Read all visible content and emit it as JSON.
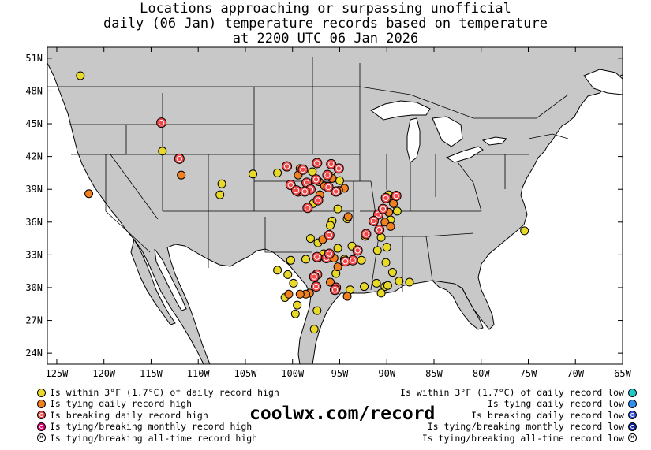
{
  "title_lines": [
    "Locations approaching or surpassing unofficial",
    "daily (06 Jan) temperature records based on temperature",
    "at 2200 UTC 06 Jan 2026"
  ],
  "lat_labels": [
    "51N",
    "48N",
    "45N",
    "42N",
    "39N",
    "36N",
    "33N",
    "30N",
    "27N",
    "24N"
  ],
  "lat_values": [
    51,
    48,
    45,
    42,
    39,
    36,
    33,
    30,
    27,
    24
  ],
  "lon_labels": [
    "125W",
    "120W",
    "115W",
    "110W",
    "105W",
    "100W",
    "95W",
    "90W",
    "85W",
    "80W",
    "75W",
    "70W",
    "65W"
  ],
  "lon_values": [
    -125,
    -120,
    -115,
    -110,
    -105,
    -100,
    -95,
    -90,
    -85,
    -80,
    -75,
    -70,
    -65
  ],
  "colors": {
    "land": "#c8c8c8",
    "water": "#ffffff",
    "within_high": "#e8d828",
    "tying_high": "#f08020",
    "breaking_high": "#f04848",
    "monthly_high": "#e00070",
    "within_low": "#20c8c8",
    "tying_low": "#3090f0",
    "breaking_low": "#3050e0",
    "monthly_low": "#1020a0"
  },
  "legend_high": [
    {
      "label": "Is within 3°F (1.7°C) of daily record high",
      "type": "within_high"
    },
    {
      "label": "Is tying daily record high",
      "type": "tying_high"
    },
    {
      "label": "Is breaking daily record high",
      "type": "breaking_high"
    },
    {
      "label": "Is tying/breaking monthly record high",
      "type": "monthly_high"
    },
    {
      "label": "Is tying/breaking all-time record high",
      "type": "alltime"
    }
  ],
  "legend_low": [
    {
      "label": "Is within 3°F (1.7°C) of daily record low",
      "type": "within_low"
    },
    {
      "label": "Is tying daily record low",
      "type": "tying_low"
    },
    {
      "label": "Is breaking daily record low",
      "type": "breaking_low"
    },
    {
      "label": "Is tying/breaking monthly record low",
      "type": "monthly_low"
    },
    {
      "label": "Is tying/breaking all-time record low",
      "type": "alltime"
    }
  ],
  "website": "coolwx.com/record",
  "stations": {
    "within_high": [
      [
        -122.5,
        49.4
      ],
      [
        -113.8,
        42.5
      ],
      [
        -107.5,
        39.5
      ],
      [
        -107.7,
        38.5
      ],
      [
        -104.2,
        40.4
      ],
      [
        -101.6,
        40.5
      ],
      [
        -97.8,
        37.7
      ],
      [
        -95.8,
        36.1
      ],
      [
        -96,
        35.7
      ],
      [
        -97.3,
        34.1
      ],
      [
        -98.1,
        34.5
      ],
      [
        -98.6,
        32.6
      ],
      [
        -96.7,
        33.1
      ],
      [
        -100.2,
        32.5
      ],
      [
        -101.6,
        31.6
      ],
      [
        -100.5,
        31.2
      ],
      [
        -99.9,
        30.4
      ],
      [
        -100.8,
        29.1
      ],
      [
        -99.5,
        28.4
      ],
      [
        -99.7,
        27.6
      ],
      [
        -97.4,
        27.9
      ],
      [
        -97.7,
        26.2
      ],
      [
        -95.2,
        33.6
      ],
      [
        -94.5,
        32.6
      ],
      [
        -93.9,
        29.8
      ],
      [
        -92.4,
        30.1
      ],
      [
        -91.1,
        30.4
      ],
      [
        -90.2,
        30.1
      ],
      [
        -88.7,
        30.6
      ],
      [
        -87.6,
        30.5
      ],
      [
        -89.4,
        31.4
      ],
      [
        -90.1,
        32.3
      ],
      [
        -91,
        33.4
      ],
      [
        -90,
        33.7
      ],
      [
        -90.6,
        34.6
      ],
      [
        -92.3,
        34.7
      ],
      [
        -92.7,
        32.5
      ],
      [
        -89.8,
        38.5
      ],
      [
        -89.4,
        38.1
      ],
      [
        -88.9,
        37.0
      ],
      [
        -89.6,
        36.2
      ],
      [
        -75.4,
        35.2
      ],
      [
        -95,
        39.8
      ],
      [
        -95.9,
        40.2
      ],
      [
        -97.9,
        40.6
      ],
      [
        -95.2,
        37.2
      ],
      [
        -94.2,
        36.3
      ],
      [
        -90.6,
        29.5
      ],
      [
        -89.9,
        30.2
      ],
      [
        -95.4,
        31.3
      ],
      [
        -93.7,
        33.8
      ],
      [
        -97.3,
        32.7
      ]
    ],
    "tying_high": [
      [
        -121.6,
        38.6
      ],
      [
        -111.8,
        40.3
      ],
      [
        -99.2,
        40.9
      ],
      [
        -99.4,
        40.3
      ],
      [
        -97.2,
        39.7
      ],
      [
        -95.8,
        40.0
      ],
      [
        -94.5,
        39.1
      ],
      [
        -95.1,
        38.9
      ],
      [
        -96.6,
        39.3
      ],
      [
        -97.1,
        38.5
      ],
      [
        -94.1,
        36.5
      ],
      [
        -96.8,
        34.4
      ],
      [
        -95.6,
        32.7
      ],
      [
        -96.0,
        30.5
      ],
      [
        -98.2,
        29.5
      ],
      [
        -98.6,
        29.4
      ],
      [
        -99.2,
        29.4
      ],
      [
        -100.4,
        29.4
      ],
      [
        -94.2,
        29.2
      ],
      [
        -95.2,
        31.9
      ],
      [
        -89.3,
        37.7
      ],
      [
        -89.8,
        36.9
      ],
      [
        -90.2,
        36.0
      ],
      [
        -89.6,
        35.6
      ]
    ],
    "breaking_high": [
      [
        -113.9,
        45.1
      ],
      [
        -112.0,
        41.8
      ],
      [
        -100.6,
        41.1
      ],
      [
        -98.9,
        40.8
      ],
      [
        -100.2,
        39.4
      ],
      [
        -99.4,
        38.8
      ],
      [
        -98.5,
        39.6
      ],
      [
        -98.1,
        39.0
      ],
      [
        -97.5,
        39.9
      ],
      [
        -96.3,
        40.3
      ],
      [
        -95.4,
        38.8
      ],
      [
        -97.4,
        41.4
      ],
      [
        -95.9,
        41.3
      ],
      [
        -96.2,
        39.2
      ],
      [
        -97.3,
        38.0
      ],
      [
        -98.4,
        37.3
      ],
      [
        -96.1,
        34.8
      ],
      [
        -97.4,
        32.8
      ],
      [
        -96.4,
        32.7
      ],
      [
        -96.1,
        33.1
      ],
      [
        -97.4,
        31.2
      ],
      [
        -97.7,
        31.0
      ],
      [
        -97.5,
        30.1
      ],
      [
        -95.4,
        30.0
      ],
      [
        -95.5,
        29.8
      ],
      [
        -93.6,
        32.5
      ],
      [
        -94.4,
        32.4
      ],
      [
        -93.1,
        33.4
      ],
      [
        -92.2,
        34.9
      ],
      [
        -90.8,
        35.3
      ],
      [
        -90.9,
        36.7
      ],
      [
        -91.4,
        36.1
      ],
      [
        -90.4,
        37.2
      ],
      [
        -90.1,
        38.2
      ],
      [
        -89.0,
        38.4
      ],
      [
        -95.1,
        40.9
      ],
      [
        -98.7,
        38.8
      ],
      [
        -99.6,
        38.9
      ]
    ]
  }
}
